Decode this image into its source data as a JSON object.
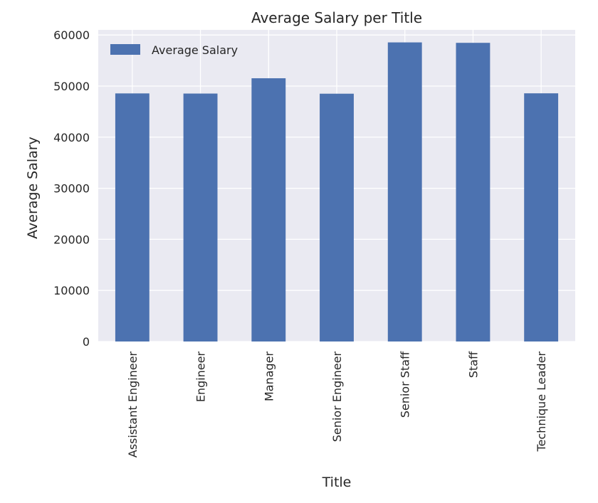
{
  "chart_data": {
    "type": "bar",
    "title": "Average Salary per Title",
    "xlabel": "Title",
    "ylabel": "Average Salary",
    "categories": [
      "Assistant Engineer",
      "Engineer",
      "Manager",
      "Senior Engineer",
      "Senior Staff",
      "Staff",
      "Technique Leader"
    ],
    "series": [
      {
        "name": "Average Salary",
        "values": [
          48564,
          48536,
          51531,
          48507,
          58550,
          58465,
          48583
        ]
      }
    ],
    "ylim": [
      0,
      61000
    ],
    "yticks": [
      0,
      10000,
      20000,
      30000,
      40000,
      50000,
      60000
    ],
    "ytick_labels": [
      "0",
      "10000",
      "20000",
      "30000",
      "40000",
      "50000",
      "60000"
    ],
    "grid": true,
    "legend_position": "top-left",
    "colors": {
      "bar": "#4c72b0",
      "plot_background": "#eaeaf2",
      "grid": "#ffffff",
      "text": "#262626"
    }
  }
}
